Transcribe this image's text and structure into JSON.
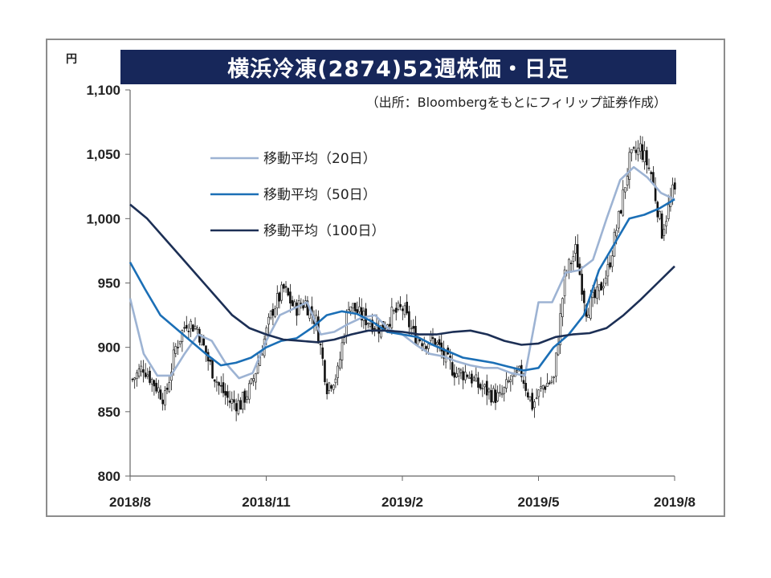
{
  "title": "横浜冷凍(2874)52週株価・日足",
  "chart_data": {
    "type": "line",
    "title": "横浜冷凍(2874)52週株価・日足",
    "unit": "円",
    "source": "（出所：Bloombergをもとにフィリップ証券作成）",
    "ylim": [
      800,
      1100
    ],
    "yticks": [
      800,
      850,
      900,
      950,
      1000,
      1050,
      1100
    ],
    "ytick_labels": [
      "800",
      "850",
      "900",
      "950",
      "1,000",
      "1,050",
      "1,100"
    ],
    "xticks": [
      "2018/8",
      "2018/11",
      "2019/2",
      "2019/5",
      "2019/8"
    ],
    "grid": false,
    "legend_position": "top-left",
    "colors": {
      "candles": "#111111",
      "ma20": "#9db3d3",
      "ma50": "#1b6fb6",
      "ma100": "#1c2f55",
      "title_bg": "#17275a"
    },
    "price_path": {
      "description_points": "approximate closing path, one point per ~5 trading days",
      "x_index": [
        0,
        5,
        10,
        15,
        20,
        25,
        30,
        35,
        40,
        45,
        50,
        55,
        60,
        65,
        70,
        75,
        80,
        85,
        90,
        95,
        100,
        105,
        110,
        115,
        120,
        125,
        130,
        135,
        140,
        145,
        150,
        155,
        160,
        165,
        170,
        175,
        180,
        185,
        190,
        195,
        200,
        205,
        210,
        215,
        220,
        225,
        230,
        235,
        240,
        245,
        250
      ],
      "values": [
        875,
        885,
        872,
        860,
        900,
        920,
        915,
        890,
        870,
        858,
        856,
        870,
        900,
        930,
        945,
        930,
        935,
        920,
        870,
        880,
        935,
        925,
        920,
        915,
        925,
        930,
        910,
        905,
        905,
        890,
        880,
        880,
        870,
        865,
        860,
        875,
        880,
        855,
        870,
        875,
        955,
        975,
        930,
        940,
        960,
        1000,
        1045,
        1055,
        1035,
        990,
        1020
      ]
    },
    "series": [
      {
        "name": "移動平均（20日）",
        "values": [
          938,
          895,
          878,
          878,
          895,
          910,
          905,
          888,
          876,
          880,
          905,
          925,
          930,
          935,
          910,
          912,
          918,
          923,
          925,
          914,
          910,
          902,
          895,
          893,
          889,
          886,
          884,
          884,
          880,
          878,
          935,
          935,
          958,
          960,
          968,
          1000,
          1030,
          1040,
          1032,
          1020,
          1015
        ]
      },
      {
        "name": "移動平均（50日）",
        "values": [
          966,
          945,
          925,
          915,
          905,
          895,
          886,
          888,
          892,
          900,
          905,
          907,
          915,
          925,
          928,
          926,
          920,
          912,
          910,
          908,
          902,
          897,
          892,
          890,
          888,
          885,
          882,
          884,
          900,
          910,
          925,
          960,
          980,
          1000,
          1003,
          1008,
          1015
        ]
      },
      {
        "name": "移動平均（100日）",
        "values": [
          1011,
          1000,
          985,
          970,
          955,
          940,
          925,
          915,
          910,
          906,
          905,
          904,
          906,
          910,
          913,
          913,
          912,
          910,
          910,
          912,
          913,
          910,
          905,
          902,
          903,
          908,
          910,
          911,
          915,
          925,
          937,
          950,
          963
        ]
      }
    ]
  }
}
